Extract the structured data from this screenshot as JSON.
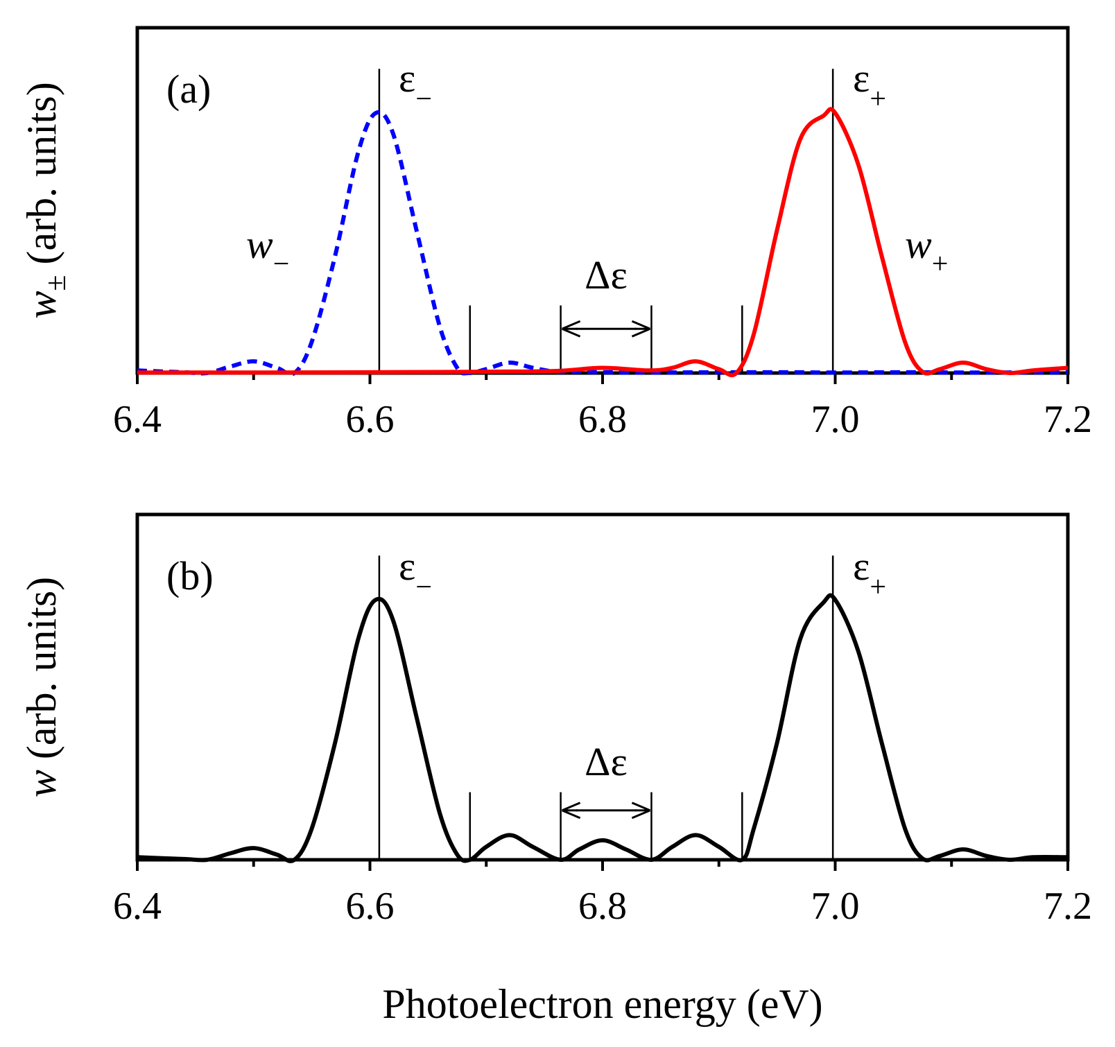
{
  "chart_data": [
    {
      "panel": "(a)",
      "type": "line",
      "ylabel_main": "w",
      "ylabel_sub": "±",
      "ylabel_rest": " (arb. units)",
      "xlim": [
        6.4,
        7.2
      ],
      "xticks": [
        "6.4",
        "6.6",
        "6.8",
        "7.0",
        "7.2"
      ],
      "ylim": [
        0,
        1.1
      ],
      "series": [
        {
          "name": "w−",
          "color": "#0000ff",
          "style": "dashed",
          "x": [
            6.4,
            6.44,
            6.46,
            6.48,
            6.5,
            6.52,
            6.535,
            6.55,
            6.57,
            6.59,
            6.605,
            6.62,
            6.64,
            6.66,
            6.675,
            6.685,
            6.7,
            6.72,
            6.74,
            6.76,
            6.78,
            6.8,
            6.84,
            6.9,
            6.96,
            7.0,
            7.06,
            7.12,
            7.2
          ],
          "y": [
            0.01,
            0.003,
            0.0,
            0.025,
            0.045,
            0.02,
            0.0,
            0.12,
            0.45,
            0.85,
            1.0,
            0.92,
            0.55,
            0.18,
            0.02,
            0.0,
            0.015,
            0.04,
            0.02,
            0.005,
            0.005,
            0.003,
            0.002,
            0.003,
            0.003,
            0.002,
            0.003,
            0.002,
            0.003
          ]
        },
        {
          "name": "w+",
          "color": "#ff0000",
          "style": "solid",
          "x": [
            6.4,
            6.5,
            6.6,
            6.7,
            6.76,
            6.8,
            6.84,
            6.86,
            6.88,
            6.9,
            6.915,
            6.93,
            6.95,
            6.97,
            6.99,
            7.0,
            7.02,
            7.04,
            7.06,
            7.075,
            7.09,
            7.11,
            7.13,
            7.15,
            7.17,
            7.2
          ],
          "y": [
            0.002,
            0.002,
            0.003,
            0.005,
            0.008,
            0.02,
            0.01,
            0.02,
            0.045,
            0.015,
            0.0,
            0.15,
            0.55,
            0.9,
            0.99,
            1.0,
            0.8,
            0.45,
            0.12,
            0.005,
            0.015,
            0.04,
            0.015,
            0.0,
            0.01,
            0.02
          ]
        }
      ],
      "vlines": [
        {
          "x": 6.608,
          "top": 1.17
        },
        {
          "x": 6.686,
          "top": 0.26
        },
        {
          "x": 6.764,
          "top": 0.26
        },
        {
          "x": 6.842,
          "top": 0.26
        },
        {
          "x": 6.92,
          "top": 0.26
        },
        {
          "x": 6.998,
          "top": 1.17
        }
      ],
      "annotations": {
        "panel_label": "(a)",
        "eps_minus": "ε",
        "eps_minus_sub": "−",
        "eps_plus": "ε",
        "eps_plus_sub": "+",
        "w_minus": "w",
        "w_minus_sub": "−",
        "w_plus": "w",
        "w_plus_sub": "+",
        "delta_eps": "Δε"
      },
      "arrow": {
        "x_from": 6.764,
        "x_to": 6.842,
        "y": 0.17
      }
    },
    {
      "panel": "(b)",
      "type": "line",
      "ylabel_main": "w",
      "ylabel_rest": " (arb. units)",
      "xlabel": "Photoelectron energy (eV)",
      "xlim": [
        6.4,
        7.2
      ],
      "xticks": [
        "6.4",
        "6.6",
        "6.8",
        "7.0",
        "7.2"
      ],
      "ylim": [
        0,
        1.1
      ],
      "series": [
        {
          "name": "w",
          "color": "#000000",
          "style": "solid",
          "x": [
            6.4,
            6.44,
            6.46,
            6.48,
            6.5,
            6.52,
            6.535,
            6.55,
            6.57,
            6.59,
            6.605,
            6.62,
            6.64,
            6.66,
            6.675,
            6.686,
            6.7,
            6.72,
            6.74,
            6.764,
            6.78,
            6.8,
            6.82,
            6.842,
            6.86,
            6.88,
            6.9,
            6.92,
            6.93,
            6.95,
            6.97,
            6.99,
            7.0,
            7.02,
            7.04,
            7.06,
            7.075,
            7.09,
            7.11,
            7.13,
            7.15,
            7.17,
            7.2
          ],
          "y": [
            0.01,
            0.003,
            0.0,
            0.025,
            0.045,
            0.02,
            0.0,
            0.12,
            0.45,
            0.85,
            1.0,
            0.92,
            0.55,
            0.18,
            0.02,
            0.0,
            0.05,
            0.095,
            0.05,
            0.0,
            0.04,
            0.075,
            0.04,
            0.0,
            0.05,
            0.095,
            0.05,
            0.0,
            0.12,
            0.45,
            0.85,
            0.99,
            1.0,
            0.8,
            0.45,
            0.12,
            0.005,
            0.015,
            0.04,
            0.015,
            0.0,
            0.01,
            0.01
          ]
        }
      ],
      "vlines": [
        {
          "x": 6.608,
          "top": 1.17
        },
        {
          "x": 6.686,
          "top": 0.26
        },
        {
          "x": 6.764,
          "top": 0.26
        },
        {
          "x": 6.842,
          "top": 0.26
        },
        {
          "x": 6.92,
          "top": 0.26
        },
        {
          "x": 6.998,
          "top": 1.17
        }
      ],
      "annotations": {
        "panel_label": "(b)",
        "eps_minus": "ε",
        "eps_minus_sub": "−",
        "eps_plus": "ε",
        "eps_plus_sub": "+",
        "delta_eps": "Δε"
      },
      "arrow": {
        "x_from": 6.764,
        "x_to": 6.842,
        "y": 0.19
      }
    }
  ]
}
